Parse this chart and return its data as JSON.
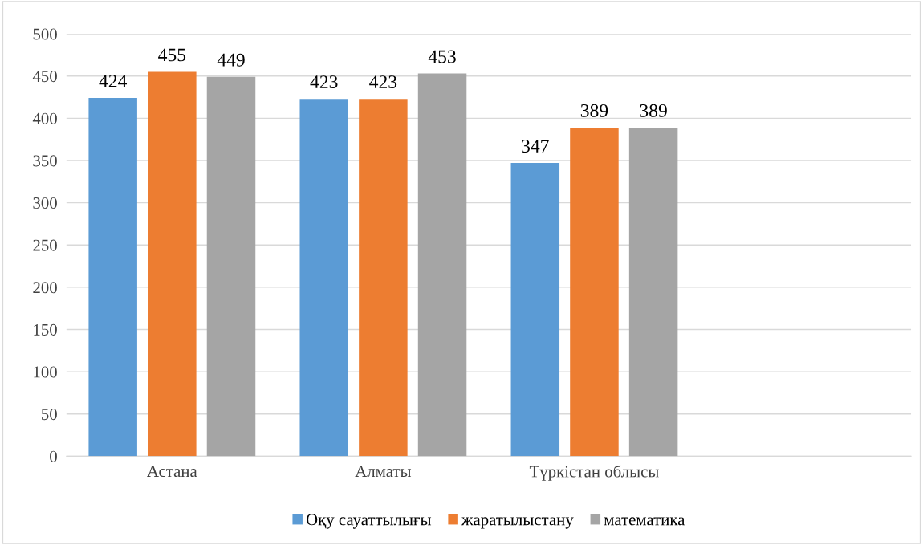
{
  "chart_data": {
    "type": "bar",
    "categories": [
      "Астана",
      "Алматы",
      "Түркістан облысы",
      null
    ],
    "series": [
      {
        "name": "Оқу сауаттылығы",
        "color": "#5b9bd5",
        "values": [
          424,
          423,
          347,
          null
        ]
      },
      {
        "name": "жаратылыстану",
        "color": "#ed7d31",
        "values": [
          455,
          423,
          389,
          null
        ]
      },
      {
        "name": "математика",
        "color": "#a5a5a5",
        "values": [
          449,
          453,
          389,
          null
        ]
      }
    ],
    "ylim": [
      0,
      500
    ],
    "yticks": [
      0,
      50,
      100,
      150,
      200,
      250,
      300,
      350,
      400,
      450,
      500
    ],
    "grid": "y",
    "legend": "bottom",
    "data_labels": true
  }
}
